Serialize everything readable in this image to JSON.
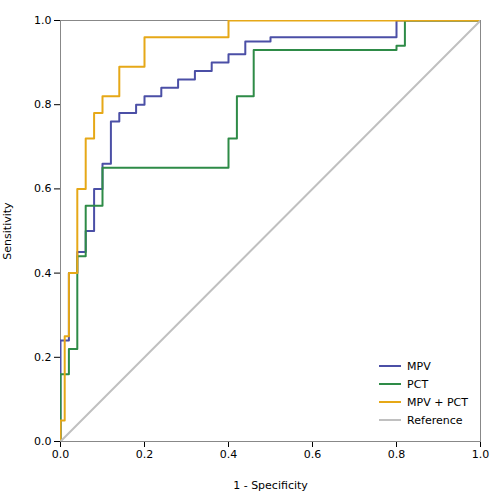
{
  "chart_data": {
    "type": "line",
    "xlabel": "1 - Specificity",
    "ylabel": "Sensitivity",
    "xlim": [
      0,
      1.0
    ],
    "ylim": [
      0,
      1.0
    ],
    "xticks": [
      {
        "value": 0,
        "label": "0.0"
      },
      0.2,
      0.4,
      0.6,
      0.8,
      {
        "value": 1.0,
        "label": "1.0"
      }
    ],
    "yticks": [
      {
        "value": 0,
        "label": "0.0"
      },
      0.2,
      0.4,
      0.6,
      0.8,
      {
        "value": 1.0,
        "label": "1.0"
      }
    ],
    "legend": "lower right",
    "series": [
      {
        "name": "MPV",
        "color": "#4b4fa6",
        "x": [
          0.0,
          0.0,
          0.0,
          0.02,
          0.02,
          0.04,
          0.04,
          0.06,
          0.06,
          0.08,
          0.08,
          0.1,
          0.1,
          0.12,
          0.12,
          0.14,
          0.14,
          0.18,
          0.18,
          0.2,
          0.2,
          0.24,
          0.24,
          0.28,
          0.28,
          0.32,
          0.32,
          0.36,
          0.36,
          0.4,
          0.4,
          0.44,
          0.44,
          0.5,
          0.5,
          0.56,
          0.56,
          0.62,
          0.62,
          0.8,
          0.8,
          1.0
        ],
        "values": [
          0.0,
          0.0,
          0.24,
          0.24,
          0.4,
          0.4,
          0.45,
          0.45,
          0.5,
          0.5,
          0.6,
          0.6,
          0.66,
          0.66,
          0.76,
          0.76,
          0.78,
          0.78,
          0.8,
          0.8,
          0.82,
          0.82,
          0.84,
          0.84,
          0.86,
          0.86,
          0.88,
          0.88,
          0.9,
          0.9,
          0.92,
          0.92,
          0.95,
          0.95,
          0.96,
          0.96,
          0.96,
          0.96,
          0.96,
          0.96,
          1.0,
          1.0
        ]
      },
      {
        "name": "PCT",
        "color": "#2e8b47",
        "x": [
          0.0,
          0.0,
          0.0,
          0.02,
          0.02,
          0.04,
          0.04,
          0.06,
          0.06,
          0.1,
          0.1,
          0.4,
          0.4,
          0.42,
          0.42,
          0.46,
          0.46,
          0.8,
          0.8,
          0.82,
          0.82,
          1.0
        ],
        "values": [
          0.0,
          0.0,
          0.16,
          0.16,
          0.22,
          0.22,
          0.44,
          0.44,
          0.56,
          0.56,
          0.65,
          0.65,
          0.72,
          0.72,
          0.82,
          0.82,
          0.93,
          0.93,
          0.94,
          0.94,
          1.0,
          1.0
        ]
      },
      {
        "name": "MPV + PCT",
        "color": "#e6a817",
        "x": [
          0.0,
          0.0,
          0.0,
          0.01,
          0.01,
          0.02,
          0.02,
          0.04,
          0.04,
          0.06,
          0.06,
          0.08,
          0.08,
          0.1,
          0.1,
          0.14,
          0.14,
          0.2,
          0.2,
          0.4,
          0.4,
          1.0
        ],
        "values": [
          0.0,
          0.0,
          0.05,
          0.05,
          0.25,
          0.25,
          0.4,
          0.4,
          0.6,
          0.6,
          0.72,
          0.72,
          0.78,
          0.78,
          0.82,
          0.82,
          0.89,
          0.89,
          0.96,
          0.96,
          1.0,
          1.0
        ]
      },
      {
        "name": "Reference",
        "color": "#c0c0c0",
        "x": [
          0,
          1
        ],
        "values": [
          0,
          1
        ]
      }
    ]
  }
}
